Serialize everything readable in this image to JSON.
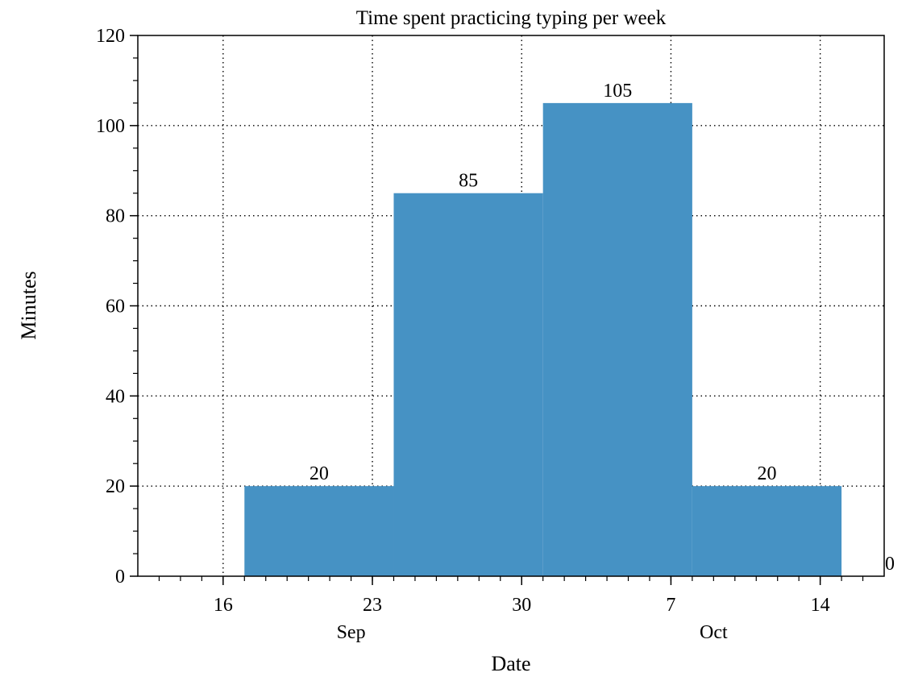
{
  "chart_data": {
    "type": "bar",
    "title": "Time spent practicing typing per week",
    "xlabel": "Date",
    "ylabel": "Minutes",
    "ylim": [
      0,
      120
    ],
    "y_ticks": [
      0,
      20,
      40,
      60,
      80,
      100,
      120
    ],
    "x_range": [
      "2023-09-12",
      "2023-10-17"
    ],
    "x_ticks": [
      {
        "date": "2023-09-16",
        "label": "16"
      },
      {
        "date": "2023-09-23",
        "label": "23"
      },
      {
        "date": "2023-09-30",
        "label": "30"
      },
      {
        "date": "2023-10-07",
        "label": "7"
      },
      {
        "date": "2023-10-14",
        "label": "14"
      }
    ],
    "month_labels": [
      {
        "date": "2023-09-22",
        "label": "Sep"
      },
      {
        "date": "2023-10-09",
        "label": "Oct"
      }
    ],
    "bins": [
      {
        "start": "2023-09-17",
        "end": "2023-09-24",
        "value": 20,
        "label": "20"
      },
      {
        "start": "2023-09-24",
        "end": "2023-10-01",
        "value": 85,
        "label": "85"
      },
      {
        "start": "2023-10-01",
        "end": "2023-10-08",
        "value": 105,
        "label": "105"
      },
      {
        "start": "2023-10-08",
        "end": "2023-10-15",
        "value": 20,
        "label": "20"
      },
      {
        "start": "2023-10-15",
        "end": "2023-10-22",
        "value": 0,
        "label": "0"
      }
    ],
    "grid": true,
    "bar_color": "#4692c4"
  }
}
